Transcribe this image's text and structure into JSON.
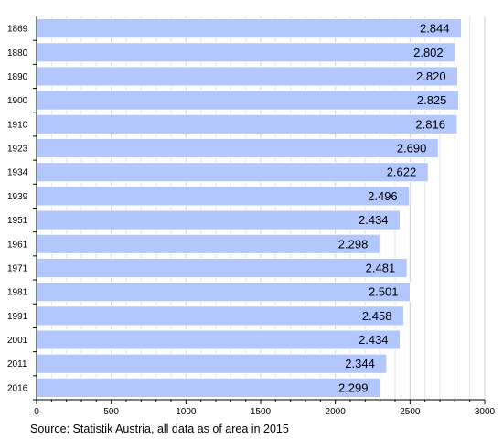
{
  "chart_data": {
    "type": "bar",
    "orientation": "horizontal",
    "categories": [
      "1869",
      "1880",
      "1890",
      "1900",
      "1910",
      "1923",
      "1934",
      "1939",
      "1951",
      "1961",
      "1971",
      "1981",
      "1991",
      "2001",
      "2011",
      "2016"
    ],
    "values": [
      2844,
      2802,
      2820,
      2825,
      2816,
      2690,
      2622,
      2496,
      2434,
      2298,
      2481,
      2501,
      2458,
      2434,
      2344,
      2299
    ],
    "value_labels": [
      "2.844",
      "2.802",
      "2.820",
      "2.825",
      "2.816",
      "2.690",
      "2.622",
      "2.496",
      "2.434",
      "2.298",
      "2.481",
      "2.501",
      "2.458",
      "2.434",
      "2.344",
      "2.299"
    ],
    "xlim": [
      0,
      3000
    ],
    "x_ticks": [
      0,
      500,
      1000,
      1500,
      2000,
      2500,
      3000
    ],
    "x_tick_labels": [
      "0",
      "500",
      "1000",
      "1500",
      "2000",
      "2500",
      "3000"
    ],
    "grid": true,
    "bar_color": "#b3c7ff",
    "bar_stroke": "#ffffff"
  },
  "source_text": "Source: Statistik Austria, all data as of area in 2015"
}
